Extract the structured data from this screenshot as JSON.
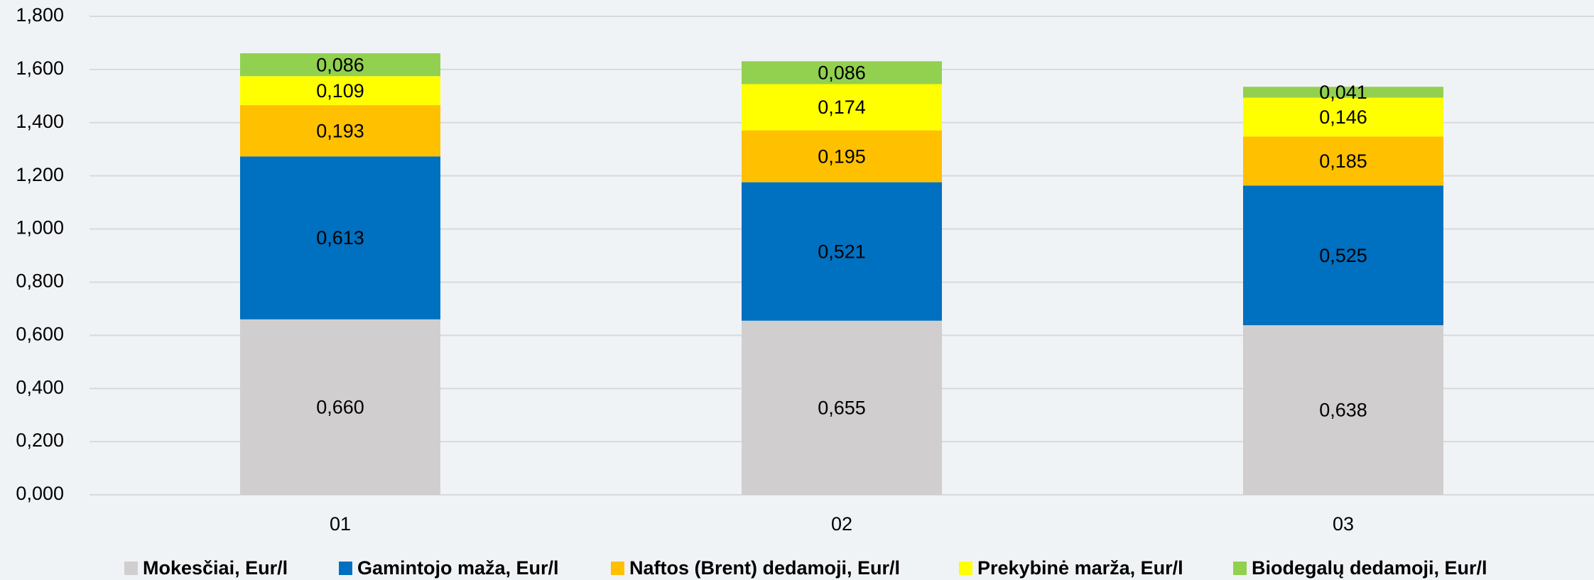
{
  "chart_data": {
    "type": "stacked_bar",
    "categories": [
      "01",
      "02",
      "03"
    ],
    "series": [
      {
        "name": "Mokesčiai, Eur/l",
        "color": "#d0cece",
        "values": [
          0.66,
          0.655,
          0.638
        ],
        "value_labels": [
          "0,660",
          "0,655",
          "0,638"
        ]
      },
      {
        "name": "Gamintojo maža, Eur/l",
        "color": "#0070c0",
        "values": [
          0.613,
          0.521,
          0.525
        ],
        "value_labels": [
          "0,613",
          "0,521",
          "0,525"
        ]
      },
      {
        "name": "Naftos (Brent) dedamoji, Eur/l",
        "color": "#ffc000",
        "values": [
          0.193,
          0.195,
          0.185
        ],
        "value_labels": [
          "0,193",
          "0,195",
          "0,185"
        ]
      },
      {
        "name": "Prekybinė marža, Eur/l",
        "color": "#ffff00",
        "values": [
          0.109,
          0.174,
          0.146
        ],
        "value_labels": [
          "0,109",
          "0,174",
          "0,146"
        ]
      },
      {
        "name": "Biodegalų dedamoji, Eur/l",
        "color": "#92d050",
        "values": [
          0.086,
          0.086,
          0.041
        ],
        "value_labels": [
          "0,086",
          "0,086",
          "0,041"
        ]
      }
    ],
    "ylim": [
      0,
      1.8
    ],
    "yticks": [
      {
        "value": 0,
        "label": "0,000"
      },
      {
        "value": 0.2,
        "label": "0,200"
      },
      {
        "value": 0.4,
        "label": "0,400"
      },
      {
        "value": 0.6,
        "label": "0,600"
      },
      {
        "value": 0.8,
        "label": "0,800"
      },
      {
        "value": 1.0,
        "label": "1,000"
      },
      {
        "value": 1.2,
        "label": "1,200"
      },
      {
        "value": 1.4,
        "label": "1,400"
      },
      {
        "value": 1.6,
        "label": "1,600"
      },
      {
        "value": 1.8,
        "label": "1,800"
      }
    ],
    "grid": true,
    "legend": "bottom"
  }
}
